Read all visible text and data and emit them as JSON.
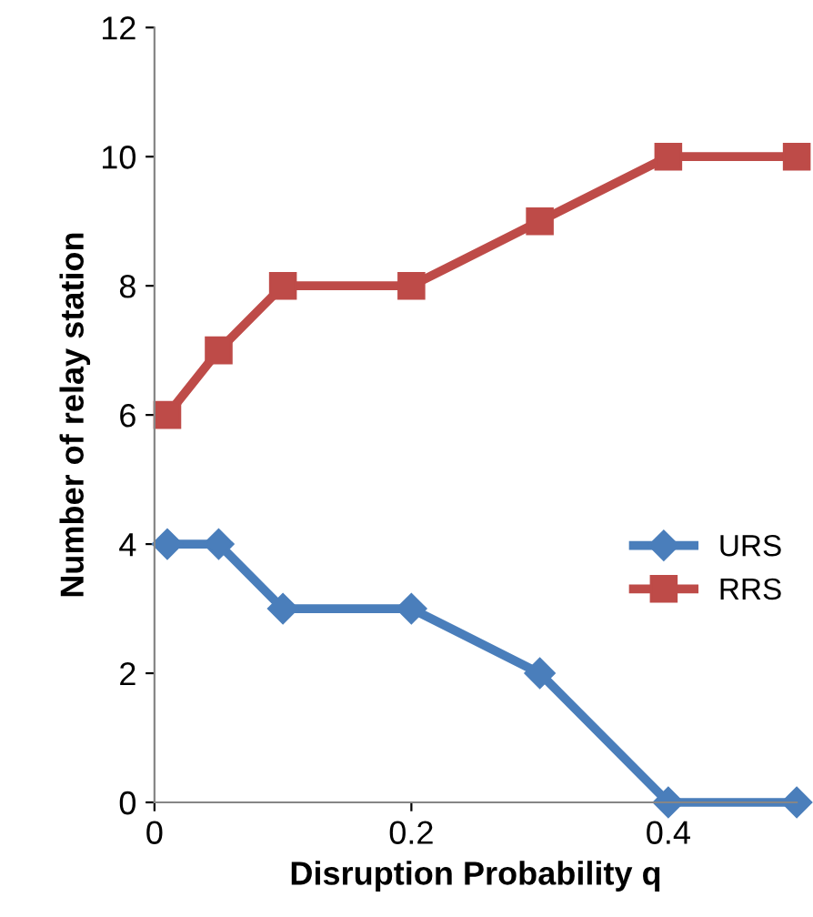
{
  "chart_data": {
    "type": "line",
    "xlabel": "Disruption Probability q",
    "ylabel": "Number of relay station",
    "x": [
      0.01,
      0.05,
      0.1,
      0.2,
      0.3,
      0.4,
      0.5
    ],
    "series": [
      {
        "name": "URS",
        "color": "#4a7ebb",
        "values": [
          4,
          4,
          3,
          3,
          2,
          0,
          0
        ],
        "marker": "diamond"
      },
      {
        "name": "RRS",
        "color": "#be4b48",
        "values": [
          6,
          7,
          8,
          8,
          9,
          10,
          10
        ],
        "marker": "square"
      }
    ],
    "xlim": [
      0,
      0.5
    ],
    "xticks": [
      0,
      0.2,
      0.4
    ],
    "ylim": [
      0,
      12
    ],
    "yticks": [
      0,
      2,
      4,
      6,
      8,
      10,
      12
    ],
    "grid": false,
    "legend": "center right",
    "line_style": "solid"
  }
}
